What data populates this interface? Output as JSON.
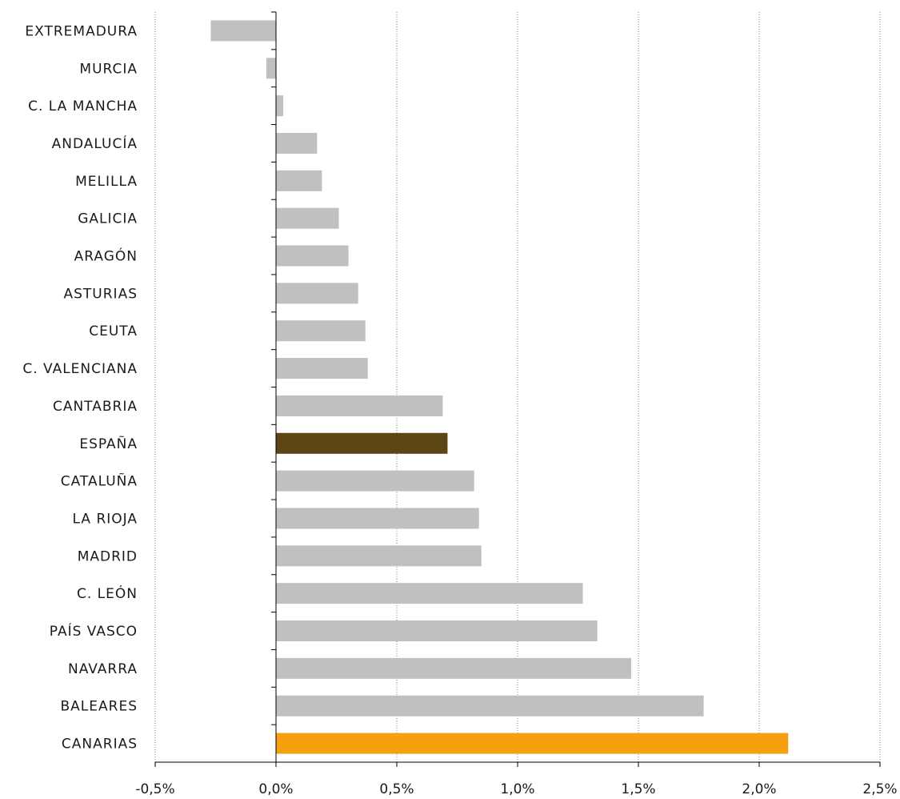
{
  "chart_data": {
    "type": "bar",
    "orientation": "horizontal",
    "title": "",
    "xlabel": "",
    "ylabel": "",
    "xlim": [
      -0.5,
      2.5
    ],
    "x_ticks": [
      -0.5,
      0.0,
      0.5,
      1.0,
      1.5,
      2.0,
      2.5
    ],
    "x_tick_labels": [
      "-0,5%",
      "0,0%",
      "0,5%",
      "1,0%",
      "1,5%",
      "2,0%",
      "2,5%"
    ],
    "grid": "vertical dotted",
    "legend": "none",
    "categories": [
      "EXTREMADURA",
      "MURCIA",
      "C. LA MANCHA",
      "ANDALUCÍA",
      "MELILLA",
      "GALICIA",
      "ARAGÓN",
      "ASTURIAS",
      "CEUTA",
      "C. VALENCIANA",
      "CANTABRIA",
      "ESPAÑA",
      "CATALUÑA",
      "LA RIOJA",
      "MADRID",
      "C. LEÓN",
      "PAÍS VASCO",
      "NAVARRA",
      "BALEARES",
      "CANARIAS"
    ],
    "values": [
      -0.27,
      -0.04,
      0.03,
      0.17,
      0.19,
      0.26,
      0.3,
      0.34,
      0.37,
      0.38,
      0.69,
      0.71,
      0.82,
      0.84,
      0.85,
      1.27,
      1.33,
      1.47,
      1.77,
      2.12
    ],
    "colors": {
      "default": "#c0c0c0",
      "ESPAÑA": "#5c4614",
      "CANARIAS": "#f5a00e"
    }
  }
}
